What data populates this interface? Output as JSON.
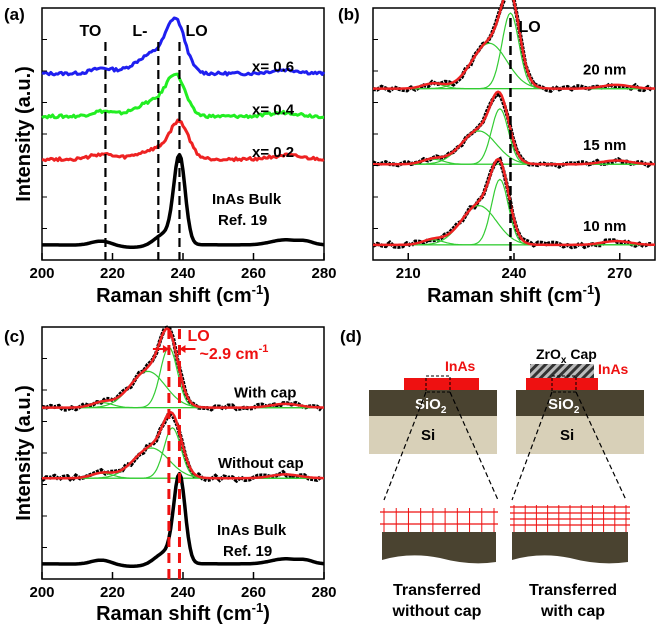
{
  "colors": {
    "blue": "#1f1ff0",
    "green": "#22ee22",
    "red": "#ee2222",
    "black": "#000000",
    "fit_green": "#33cc33",
    "red_annot": "#ee1111",
    "dark_layer": "#4a4330",
    "sio2_layer": "#534a35",
    "si_layer": "#d8d0b8"
  },
  "chart_data": [
    {
      "panel": "(a)",
      "type": "line",
      "xlabel": "Raman shift (cm",
      "xlabel_sup": "-1",
      "xlabel_close": ")",
      "ylabel": "Intensity (a.u.)",
      "xlim": [
        200,
        280
      ],
      "xticks": [
        "200",
        "220",
        "240",
        "260",
        "280"
      ],
      "markers": [
        {
          "label": "TO",
          "x": 218
        },
        {
          "label": "L-",
          "x": 233
        },
        {
          "label": "LO",
          "x": 239
        }
      ],
      "series": [
        {
          "name": "x= 0.6",
          "offset": 0.74,
          "peak": 238,
          "amp": 0.18,
          "shoulder": 0.08,
          "noise": 0.012
        },
        {
          "name": "x= 0.4",
          "offset": 0.57,
          "peak": 238,
          "amp": 0.14,
          "shoulder": 0.06,
          "noise": 0.012
        },
        {
          "name": "x= 0.2",
          "offset": 0.4,
          "peak": 239,
          "amp": 0.13,
          "shoulder": 0.04,
          "noise": 0.012
        },
        {
          "name": "InAs Bulk",
          "name2": "Ref. 19",
          "offset": 0.06,
          "peak": 239,
          "amp": 0.34,
          "shoulder": 0.0,
          "noise": 0.0
        }
      ]
    },
    {
      "panel": "(b)",
      "type": "line",
      "xlabel": "Raman shift (cm",
      "xlabel_sup": "-1",
      "xlabel_close": ")",
      "xlim": [
        200,
        280
      ],
      "xticks": [
        "210",
        "240",
        "270"
      ],
      "markers": [
        {
          "label": "LO",
          "x": 239
        }
      ],
      "series": [
        {
          "name": "20 nm",
          "offset": 0.68,
          "peak": 239,
          "amp": 0.3
        },
        {
          "name": "15 nm",
          "offset": 0.38,
          "peak": 236,
          "amp": 0.22
        },
        {
          "name": "10 nm",
          "offset": 0.06,
          "peak": 236,
          "amp": 0.26
        }
      ]
    },
    {
      "panel": "(c)",
      "type": "line",
      "xlabel": "Raman shift (cm",
      "xlabel_sup": "-1",
      "xlabel_close": ")",
      "ylabel": "Intensity (a.u.)",
      "xlim": [
        200,
        280
      ],
      "xticks": [
        "200",
        "220",
        "240",
        "260",
        "280"
      ],
      "markers": [
        {
          "label": "LO",
          "x": 236
        },
        {
          "label": "",
          "x": 239
        }
      ],
      "annotation": "~2.9 cm",
      "annotation_sup": "-1",
      "series": [
        {
          "name": "With cap",
          "offset": 0.68,
          "peak": 236,
          "amp": 0.24
        },
        {
          "name": "Without cap",
          "offset": 0.4,
          "peak": 237,
          "amp": 0.2
        },
        {
          "name": "InAs Bulk",
          "name2": "Ref. 19",
          "offset": 0.06,
          "peak": 239,
          "amp": 0.34
        }
      ]
    }
  ],
  "diagram": {
    "panel": "(d)",
    "left_top_label": "InAs",
    "cap_label": "ZrO",
    "cap_sub": "x",
    "cap_rest": " Cap",
    "right_top_label": "InAs",
    "sio2": "SiO",
    "sio2_sub": "2",
    "si": "Si",
    "left_caption_1": "Transferred",
    "left_caption_2": "without cap",
    "right_caption_1": "Transferred",
    "right_caption_2": "with cap"
  }
}
